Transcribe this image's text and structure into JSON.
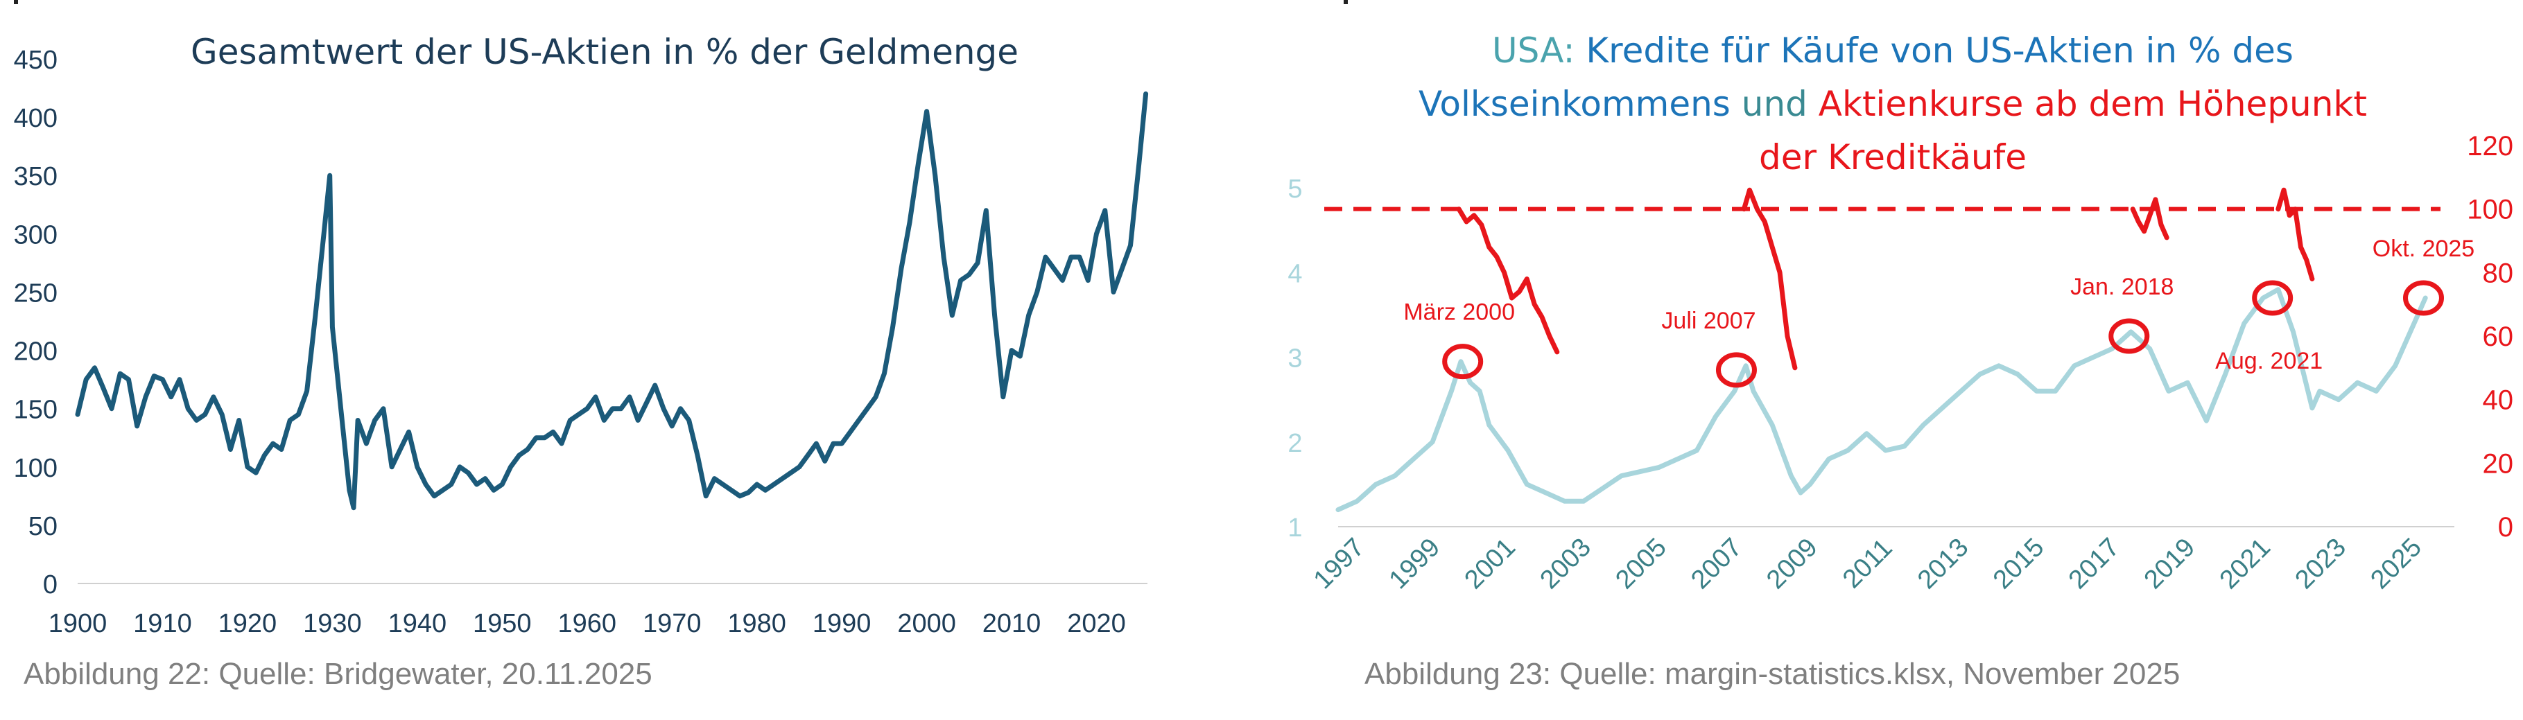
{
  "left": {
    "caption": "Abbildung 22: Quelle: Bridgewater, 20.11.2025",
    "chart_data": {
      "type": "line",
      "title": "Gesamtwert der US-Aktien in % der Geldmenge",
      "xlabel": "",
      "ylabel": "",
      "xlim": [
        1900,
        2026
      ],
      "ylim": [
        0,
        450
      ],
      "x_ticks": [
        1900,
        1910,
        1920,
        1930,
        1940,
        1950,
        1960,
        1970,
        1980,
        1990,
        2000,
        2010,
        2020
      ],
      "y_ticks": [
        0,
        50,
        100,
        150,
        200,
        250,
        300,
        350,
        400,
        450
      ],
      "grid": false,
      "line_color": "#1b5a7a",
      "series": [
        {
          "x": [
            1900,
            1901,
            1902,
            1903,
            1904,
            1905,
            1906,
            1907,
            1908,
            1909,
            1910,
            1911,
            1912,
            1913,
            1914,
            1915,
            1916,
            1917,
            1918,
            1919,
            1920,
            1921,
            1922,
            1923,
            1924,
            1925,
            1926,
            1927,
            1928,
            1929,
            1929.7,
            1930,
            1931,
            1932,
            1932.5,
            1933,
            1934,
            1935,
            1936,
            1937,
            1938,
            1939,
            1940,
            1941,
            1942,
            1943,
            1944,
            1945,
            1946,
            1947,
            1948,
            1949,
            1950,
            1951,
            1952,
            1953,
            1954,
            1955,
            1956,
            1957,
            1958,
            1959,
            1960,
            1961,
            1962,
            1963,
            1964,
            1965,
            1966,
            1967,
            1968,
            1969,
            1970,
            1971,
            1972,
            1973,
            1974,
            1975,
            1976,
            1977,
            1978,
            1979,
            1980,
            1981,
            1982,
            1983,
            1984,
            1985,
            1986,
            1987,
            1988,
            1989,
            1990,
            1991,
            1992,
            1993,
            1994,
            1995,
            1996,
            1997,
            1998,
            1999,
            2000,
            2001,
            2002,
            2003,
            2004,
            2005,
            2006,
            2007,
            2008,
            2009,
            2010,
            2011,
            2012,
            2013,
            2014,
            2015,
            2016,
            2017,
            2018,
            2019,
            2020,
            2021,
            2022,
            2023,
            2024,
            2025,
            2025.8
          ],
          "values": [
            145,
            175,
            185,
            168,
            150,
            180,
            175,
            135,
            160,
            178,
            175,
            160,
            175,
            150,
            140,
            145,
            160,
            145,
            115,
            140,
            100,
            95,
            110,
            120,
            115,
            140,
            145,
            165,
            230,
            300,
            350,
            220,
            150,
            80,
            65,
            140,
            120,
            140,
            150,
            100,
            115,
            130,
            100,
            85,
            75,
            80,
            85,
            100,
            95,
            85,
            90,
            80,
            85,
            100,
            110,
            115,
            125,
            125,
            130,
            120,
            140,
            145,
            150,
            160,
            140,
            150,
            150,
            160,
            140,
            155,
            170,
            150,
            135,
            150,
            140,
            110,
            75,
            90,
            85,
            80,
            75,
            78,
            85,
            80,
            85,
            90,
            95,
            100,
            110,
            120,
            105,
            120,
            120,
            130,
            140,
            150,
            160,
            180,
            220,
            270,
            310,
            360,
            405,
            350,
            280,
            230,
            260,
            265,
            275,
            320,
            230,
            160,
            200,
            195,
            230,
            250,
            280,
            270,
            260,
            280,
            280,
            260,
            300,
            320,
            250,
            270,
            290,
            360,
            420
          ]
        }
      ]
    }
  },
  "right": {
    "caption": "Abbildung 23: Quelle: margin-statistics.klsx, November 2025",
    "chart_data": {
      "type": "line",
      "title_parts": [
        {
          "text": "USA: ",
          "color": "#4aa3ad",
          "line": 1
        },
        {
          "text": "Kredite für Käufe von US-Aktien in % des",
          "color": "#1c74b8",
          "line": 1
        },
        {
          "text": "Volkseinkommens",
          "color": "#1c74b8",
          "line": 2
        },
        {
          "text": " und ",
          "color": "#3a8a92",
          "line": 2
        },
        {
          "text": "Aktienkurse ab dem Höhepunkt",
          "color": "#e8161b",
          "line": 2
        },
        {
          "text": "der Kreditkäufe",
          "color": "#e8161b",
          "line": 3
        }
      ],
      "xlim": [
        1997,
        2026.2
      ],
      "x_ticks": [
        "1997",
        "1999",
        "2001",
        "2003",
        "2005",
        "2007",
        "2009",
        "2011",
        "2013",
        "2015",
        "2017",
        "2019",
        "2021",
        "2023",
        "2025"
      ],
      "left_axis": {
        "ylim": [
          1,
          5.5
        ],
        "ticks": [
          1,
          2,
          3,
          4,
          5
        ],
        "color": "#a8d5dc"
      },
      "right_axis": {
        "ylim": [
          0,
          120
        ],
        "ticks": [
          0,
          20,
          40,
          60,
          80,
          100,
          120
        ],
        "color": "#e8161b"
      },
      "reference_line": {
        "value": 100,
        "axis": "right",
        "style": "dashed",
        "color": "#e8161b"
      },
      "margin_series": {
        "axis": "left",
        "color": "#a8d5dc",
        "x": [
          1997,
          1997.5,
          1998,
          1998.5,
          1999,
          1999.5,
          2000,
          2000.25,
          2000.5,
          2000.75,
          2001,
          2001.5,
          2002,
          2002.5,
          2003,
          2003.5,
          2004,
          2004.5,
          2005,
          2005.5,
          2006,
          2006.5,
          2007,
          2007.5,
          2007.8,
          2008,
          2008.5,
          2009,
          2009.25,
          2009.5,
          2010,
          2010.5,
          2011,
          2011.5,
          2012,
          2012.5,
          2013,
          2013.5,
          2014,
          2014.5,
          2015,
          2015.5,
          2016,
          2016.5,
          2017,
          2017.5,
          2018,
          2018.5,
          2019,
          2019.5,
          2020,
          2020.5,
          2021,
          2021.5,
          2021.9,
          2022.3,
          2022.8,
          2023,
          2023.5,
          2024,
          2024.5,
          2025,
          2025.5,
          2025.8
        ],
        "values": [
          1.2,
          1.3,
          1.5,
          1.6,
          1.8,
          2.0,
          2.6,
          2.95,
          2.7,
          2.6,
          2.2,
          1.9,
          1.5,
          1.4,
          1.3,
          1.3,
          1.45,
          1.6,
          1.65,
          1.7,
          1.8,
          1.9,
          2.3,
          2.6,
          2.9,
          2.6,
          2.2,
          1.6,
          1.4,
          1.5,
          1.8,
          1.9,
          2.1,
          1.9,
          1.95,
          2.2,
          2.4,
          2.6,
          2.8,
          2.9,
          2.8,
          2.6,
          2.6,
          2.9,
          3.0,
          3.1,
          3.3,
          3.1,
          2.6,
          2.7,
          2.25,
          2.8,
          3.4,
          3.7,
          3.8,
          3.3,
          2.4,
          2.6,
          2.5,
          2.7,
          2.6,
          2.9,
          3.4,
          3.7
        ]
      },
      "price_series": [
        {
          "axis": "right",
          "x": [
            2000.2,
            2000.4,
            2000.6,
            2000.8,
            2001,
            2001.2,
            2001.4,
            2001.6,
            2001.8,
            2002,
            2002.2,
            2002.4,
            2002.6,
            2002.8
          ],
          "values": [
            100,
            96,
            98,
            95,
            88,
            85,
            80,
            72,
            74,
            78,
            70,
            66,
            60,
            55
          ]
        },
        {
          "axis": "right",
          "x": [
            2007.75,
            2007.9,
            2008.1,
            2008.3,
            2008.5,
            2008.7,
            2008.9,
            2009.1
          ],
          "values": [
            100,
            106,
            100,
            96,
            88,
            80,
            60,
            50
          ]
        },
        {
          "axis": "right",
          "x": [
            2018.05,
            2018.2,
            2018.35,
            2018.5,
            2018.65,
            2018.8,
            2018.95
          ],
          "values": [
            100,
            96,
            93,
            98,
            103,
            95,
            91
          ]
        },
        {
          "axis": "right",
          "x": [
            2021.9,
            2022.05,
            2022.2,
            2022.35,
            2022.5,
            2022.65,
            2022.8
          ],
          "values": [
            100,
            106,
            98,
            100,
            88,
            84,
            78
          ]
        }
      ],
      "annotations": [
        {
          "label": "März 2000",
          "x": 2000.3,
          "y": 2.95,
          "label_dx": -5,
          "label_dy": -72
        },
        {
          "label": "Juli 2007",
          "x": 2007.55,
          "y": 2.85,
          "label_dx": -40,
          "label_dy": -72
        },
        {
          "label": "Jan. 2018",
          "x": 2017.95,
          "y": 3.25,
          "label_dx": -10,
          "label_dy": -72
        },
        {
          "label": "Aug. 2021",
          "x": 2021.75,
          "y": 3.7,
          "label_dx": -5,
          "label_dy": 90
        },
        {
          "label": "Okt. 2025",
          "x": 2025.75,
          "y": 3.7,
          "label_dx": 0,
          "label_dy": -72
        }
      ],
      "annotation_color": "#e8161b"
    }
  }
}
